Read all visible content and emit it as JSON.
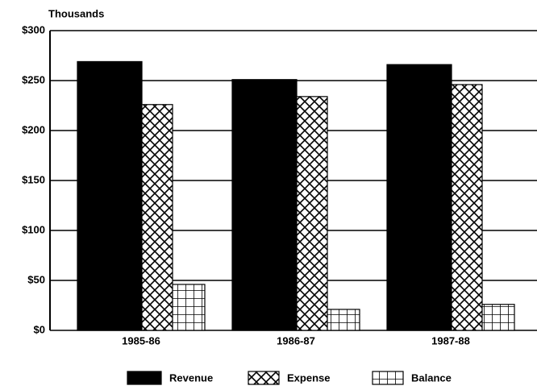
{
  "chart_data": {
    "type": "bar",
    "y_label": "Thousands",
    "categories": [
      "1985-86",
      "1986-87",
      "1987-88"
    ],
    "series": [
      {
        "name": "Revenue",
        "color": "#000000",
        "pattern": "solid",
        "values": [
          269,
          251,
          266
        ]
      },
      {
        "name": "Expense",
        "color": "#000000",
        "pattern": "crosshatch",
        "values": [
          226,
          234,
          246
        ]
      },
      {
        "name": "Balance",
        "color": "#000000",
        "pattern": "grid",
        "values": [
          46,
          21,
          26
        ]
      }
    ],
    "ylim": [
      0,
      300
    ],
    "yticks": [
      {
        "value": 0,
        "label": "$0"
      },
      {
        "value": 50,
        "label": "$50"
      },
      {
        "value": 100,
        "label": "$100"
      },
      {
        "value": 150,
        "label": "$150"
      },
      {
        "value": 200,
        "label": "$200"
      },
      {
        "value": 250,
        "label": "$250"
      },
      {
        "value": 300,
        "label": "$300"
      }
    ],
    "grid": true,
    "legend": "bottom"
  }
}
